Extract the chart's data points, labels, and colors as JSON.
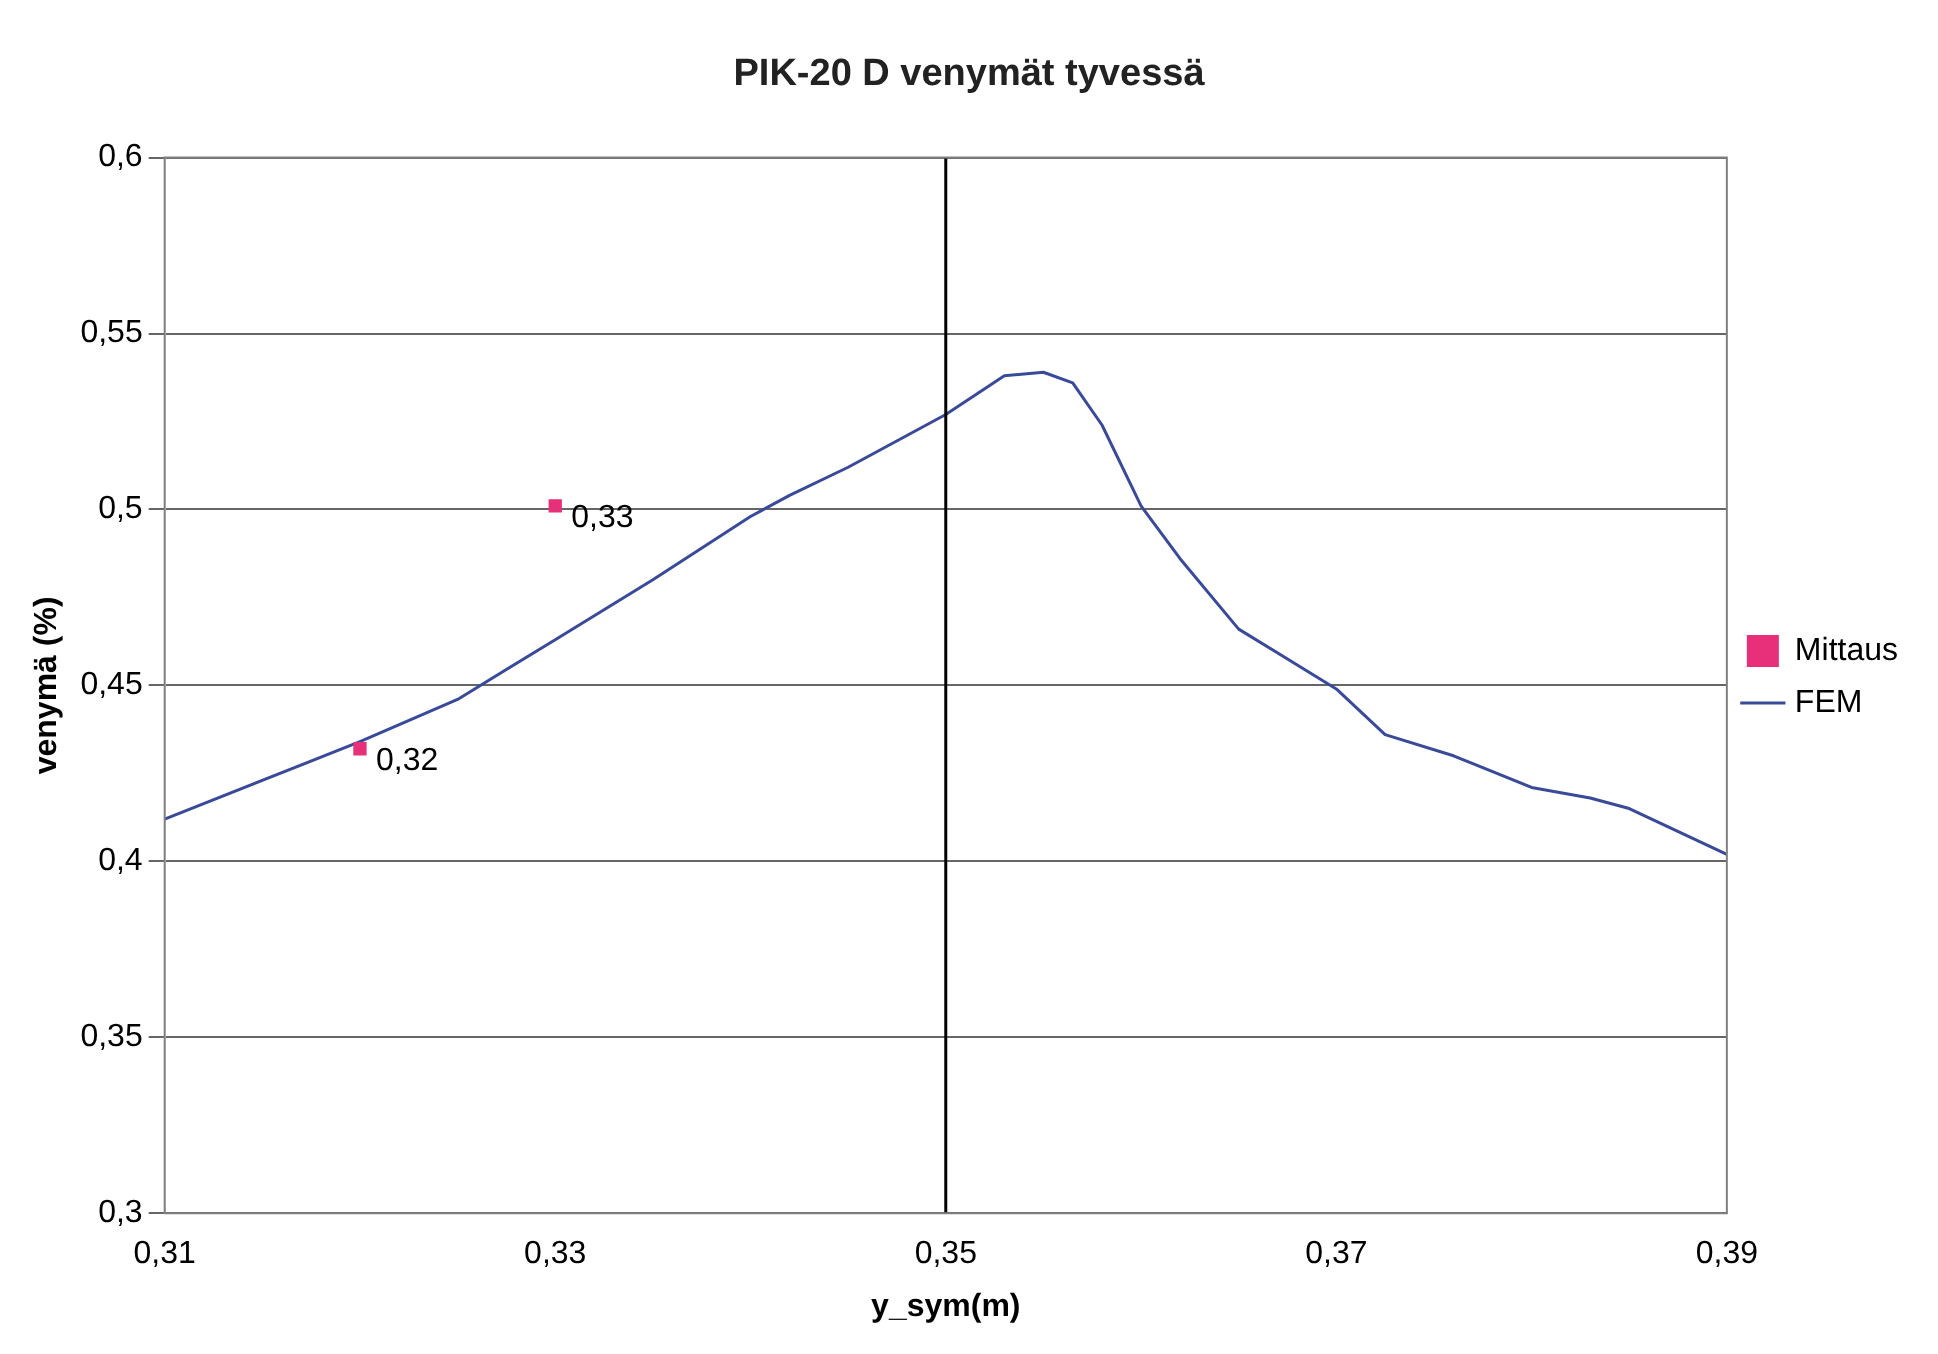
{
  "chart_data": {
    "type": "line",
    "title": "PIK-20 D venymät tyvessä",
    "xlabel": "y_sym(m)",
    "ylabel": "venymä (%)",
    "xlim": [
      0.31,
      0.39
    ],
    "xticks": [
      {
        "value": 0.31,
        "label": "0,31"
      },
      {
        "value": 0.33,
        "label": "0,33"
      },
      {
        "value": 0.35,
        "label": "0,35"
      },
      {
        "value": 0.37,
        "label": "0,37"
      },
      {
        "value": 0.39,
        "label": "0,39"
      }
    ],
    "ylim": [
      0.3,
      0.6
    ],
    "yticks": [
      {
        "value": 0.3,
        "label": "0,3"
      },
      {
        "value": 0.35,
        "label": "0,35"
      },
      {
        "value": 0.4,
        "label": "0,4"
      },
      {
        "value": 0.45,
        "label": "0,45"
      },
      {
        "value": 0.5,
        "label": "0,5"
      },
      {
        "value": 0.55,
        "label": "0,55"
      },
      {
        "value": 0.6,
        "label": "0,6"
      }
    ],
    "grid": "y",
    "legend": "right",
    "ref_lines": [
      {
        "axis": "x",
        "value": 0.35,
        "color": "#000000"
      }
    ],
    "annotations": [
      {
        "text": "0,32",
        "x": 0.32,
        "y": 0.432
      },
      {
        "text": "0,33",
        "x": 0.33,
        "y": 0.501
      }
    ],
    "series": [
      {
        "name": "Mittaus",
        "type": "scatter",
        "marker": "square",
        "color": "#e8307a",
        "x": [
          0.32,
          0.33
        ],
        "values": [
          0.432,
          0.501
        ]
      },
      {
        "name": "FEM",
        "type": "line",
        "marker": "none",
        "color": "#3a4a9a",
        "x": [
          0.31,
          0.32,
          0.325,
          0.33,
          0.335,
          0.34,
          0.342,
          0.345,
          0.35,
          0.353,
          0.355,
          0.3565,
          0.358,
          0.36,
          0.362,
          0.365,
          0.37,
          0.3725,
          0.376,
          0.38,
          0.383,
          0.385,
          0.39
        ],
        "values": [
          0.412,
          0.434,
          0.446,
          0.463,
          0.48,
          0.498,
          0.504,
          0.512,
          0.527,
          0.538,
          0.539,
          0.536,
          0.524,
          0.501,
          0.486,
          0.466,
          0.449,
          0.436,
          0.43,
          0.421,
          0.418,
          0.415,
          0.402
        ]
      }
    ]
  }
}
